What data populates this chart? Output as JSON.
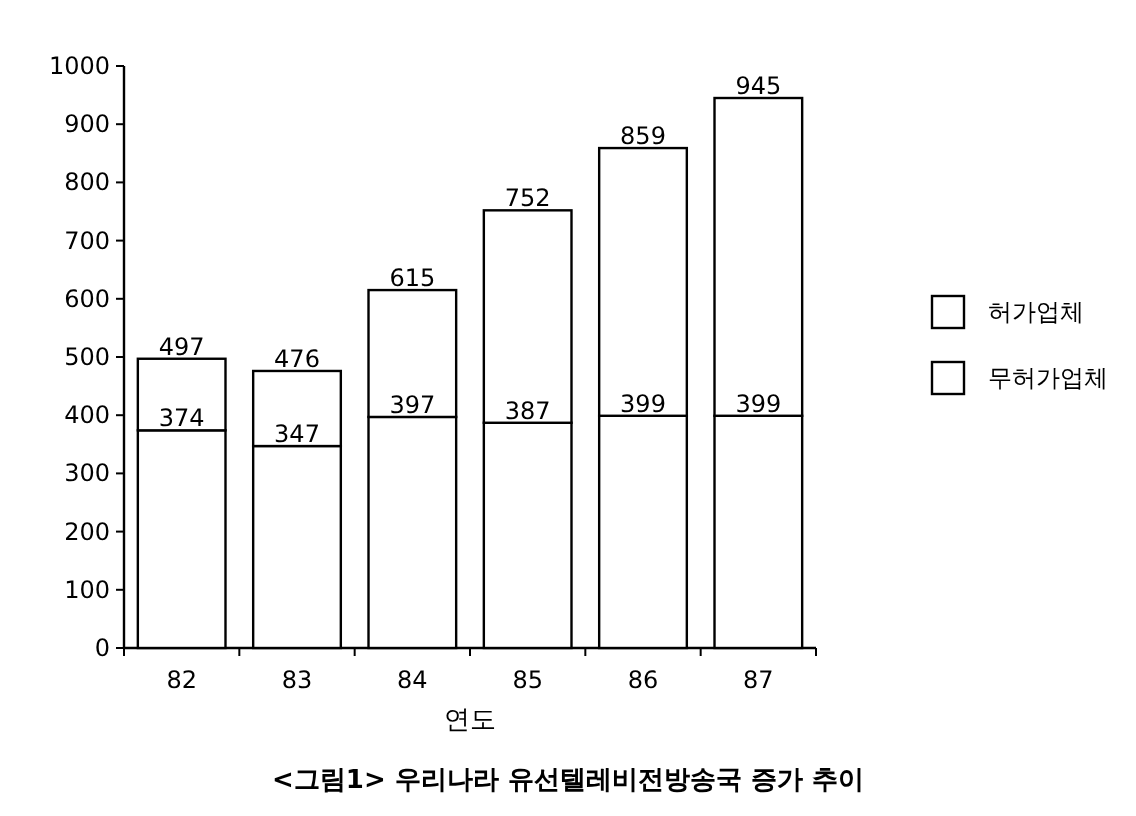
{
  "chart_data": {
    "type": "bar",
    "title": "<그림1> 우리나라 유선텔레비전방송국 증가 추이",
    "xlabel": "연도",
    "categories": [
      "82",
      "83",
      "84",
      "85",
      "86",
      "87"
    ],
    "stacked": true,
    "series": [
      {
        "name": "무허가업체",
        "color": "#ffffff",
        "values": [
          374,
          347,
          397,
          387,
          399,
          399
        ],
        "value_labels": [
          "374",
          "347",
          "397",
          "387",
          "399",
          "399"
        ]
      },
      {
        "name": "허가업체",
        "color": "#ffffff",
        "values": [
          123,
          129,
          218,
          365,
          460,
          546
        ]
      }
    ],
    "totals": [
      "497",
      "476",
      "615",
      "752",
      "859",
      "945"
    ],
    "ylim": [
      0,
      1000
    ],
    "yticks": [
      0,
      100,
      200,
      300,
      400,
      500,
      600,
      700,
      800,
      900,
      1000
    ],
    "grid": false,
    "legend": "right"
  }
}
